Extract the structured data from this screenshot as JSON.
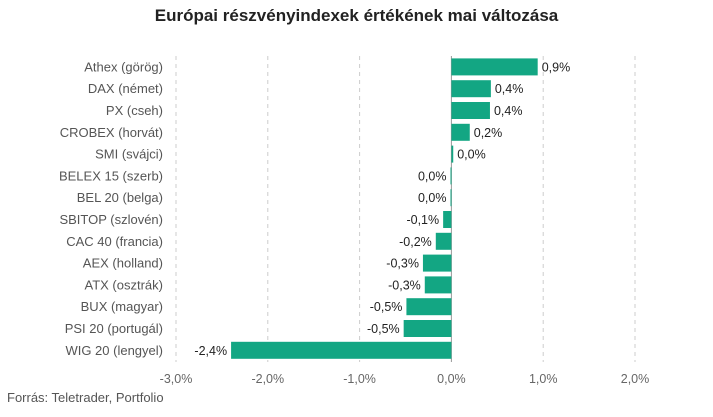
{
  "chart_data": {
    "type": "bar",
    "orientation": "horizontal",
    "title": "Európai részvényindexek értékének mai változása",
    "source": "Forrás: Teletrader, Portfolio",
    "categories": [
      "Athex (görög)",
      "DAX (német)",
      "PX (cseh)",
      "CROBEX (horvát)",
      "SMI (svájci)",
      "BELEX 15 (szerb)",
      "BEL 20 (belga)",
      "SBITOP (szlovén)",
      "CAC 40 (francia)",
      "AEX (holland)",
      "ATX (osztrák)",
      "BUX (magyar)",
      "PSI 20 (portugál)",
      "WIG 20 (lengyel)"
    ],
    "values": [
      0.94,
      0.43,
      0.42,
      0.2,
      0.02,
      -0.01,
      -0.01,
      -0.09,
      -0.17,
      -0.31,
      -0.29,
      -0.49,
      -0.52,
      -2.4
    ],
    "value_labels": [
      "0,9%",
      "0,4%",
      "0,4%",
      "0,2%",
      "0,0%",
      "0,0%",
      "0,0%",
      "-0,1%",
      "-0,2%",
      "-0,3%",
      "-0,3%",
      "-0,5%",
      "-0,5%",
      "-2,4%"
    ],
    "xlim": [
      -3.0,
      2.0
    ],
    "ticks": [
      -3.0,
      -2.0,
      -1.0,
      0.0,
      1.0,
      2.0
    ],
    "tick_labels": [
      "-3,0%",
      "-2,0%",
      "-1,0%",
      "0,0%",
      "1,0%",
      "2,0%"
    ],
    "xlabel": "",
    "ylabel": "",
    "grid": "vertical dashed",
    "legend": "none",
    "colors": {
      "bar": "#13a683",
      "grid": "#cccccc",
      "axis": "#999999"
    }
  }
}
